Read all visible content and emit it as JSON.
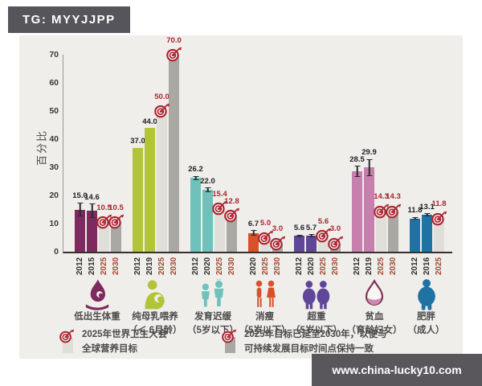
{
  "header": {
    "badge": "TG: MYYJJPP"
  },
  "watermark": {
    "text": "www.china-lucky10.com"
  },
  "colors": {
    "panel_bg": "#f0eeeb",
    "badge_bg": "#57555c",
    "bar_gray_2025": "#e0ded9",
    "bar_gray_2030": "#aaa8a3",
    "target_red": "#ab2430",
    "target_year_red": "#a34a33",
    "data_label": "#22211f"
  },
  "legend": [
    {
      "icon": "target-2025-legend-icon",
      "stub": "light",
      "lines": [
        "2025年世界卫生大会",
        "全球营养目标"
      ]
    },
    {
      "icon": "target-2030-legend-icon",
      "stub": "dark",
      "lines": [
        "2025年目标已延至2030年，以便与",
        "可持续发展目标时间点保持一致"
      ]
    }
  ],
  "chart_data": {
    "type": "bar",
    "title": "",
    "ylabel": "百分比",
    "ylim": [
      0,
      70
    ],
    "yticks": [
      0,
      10,
      20,
      30,
      40,
      50,
      60,
      70
    ],
    "grid": false,
    "note": "gray bars = 2025 WHA targets (light) and targets extended to 2030 (dark); whiskers = uncertainty intervals",
    "groups": [
      {
        "category": "低出生体重",
        "sublabel": "",
        "icon": "low-birth-weight-icon",
        "color": "#7e2a5f",
        "bars": [
          {
            "year": "2012",
            "value": 15.0,
            "label": "15.0",
            "kind": "data",
            "error": 2.5
          },
          {
            "year": "2015",
            "value": 14.6,
            "label": "14.6",
            "kind": "data",
            "error": 2.5
          },
          {
            "year": "2025",
            "value": 10.5,
            "label": "10.5",
            "kind": "target2025"
          },
          {
            "year": "2030",
            "value": 10.5,
            "label": "10.5",
            "kind": "target2030"
          }
        ]
      },
      {
        "category": "纯母乳喂养",
        "sublabel": "（＜ 6月龄）",
        "icon": "breastfeeding-icon",
        "color": "#b2c437",
        "bars": [
          {
            "year": "2012",
            "value": 37.0,
            "label": "37.0",
            "kind": "data"
          },
          {
            "year": "2019",
            "value": 44.0,
            "label": "44.0",
            "kind": "data"
          },
          {
            "year": "2025",
            "value": 50.0,
            "label": "50.0",
            "kind": "target2025"
          },
          {
            "year": "2030",
            "value": 70.0,
            "label": "70.0",
            "kind": "target2030"
          }
        ]
      },
      {
        "category": "发育迟缓",
        "sublabel": "（5岁以下）",
        "icon": "stunting-icon",
        "color": "#6fc2bb",
        "bars": [
          {
            "year": "2012",
            "value": 26.2,
            "label": "26.2",
            "kind": "data",
            "error": 0.8
          },
          {
            "year": "2020",
            "value": 22.0,
            "label": "22.0",
            "kind": "data",
            "error": 0.8
          },
          {
            "year": "2025",
            "value": 15.4,
            "label": "15.4",
            "kind": "target2025"
          },
          {
            "year": "2030",
            "value": 12.8,
            "label": "12.8",
            "kind": "target2030"
          }
        ]
      },
      {
        "category": "消瘦",
        "sublabel": "（5岁以下）",
        "icon": "wasting-icon",
        "color": "#d9512b",
        "bars": [
          {
            "year": "2020",
            "value": 6.7,
            "label": "6.7",
            "kind": "data",
            "error": 0.9
          },
          {
            "year": "2025",
            "value": 5.0,
            "label": "5.0",
            "kind": "target2025"
          },
          {
            "year": "2030",
            "value": 3.0,
            "label": "3.0",
            "kind": "target2030"
          }
        ]
      },
      {
        "category": "超重",
        "sublabel": "（5岁以下）",
        "icon": "overweight-icon",
        "color": "#5f4699",
        "bars": [
          {
            "year": "2012",
            "value": 5.6,
            "label": "5.6",
            "kind": "data",
            "error": 0.5
          },
          {
            "year": "2020",
            "value": 5.7,
            "label": "5.7",
            "kind": "data",
            "error": 0.5
          },
          {
            "year": "2025",
            "value": 5.6,
            "label": "5.6",
            "kind": "target2025"
          },
          {
            "year": "2030",
            "value": 3.0,
            "label": "3.0",
            "kind": "target2030"
          }
        ]
      },
      {
        "category": "贫血",
        "sublabel": "（育龄妇女）",
        "icon": "anemia-icon",
        "color": "#c77fae",
        "bars": [
          {
            "year": "2012",
            "value": 28.5,
            "label": "28.5",
            "kind": "data",
            "error": 2.0
          },
          {
            "year": "2019",
            "value": 29.9,
            "label": "29.9",
            "kind": "data",
            "error": 3.0
          },
          {
            "year": "2025",
            "value": 14.3,
            "label": "14.3",
            "kind": "target2025"
          },
          {
            "year": "2030",
            "value": 14.3,
            "label": "14.3",
            "kind": "target2030"
          }
        ]
      },
      {
        "category": "肥胖",
        "sublabel": "（成人）",
        "icon": "obesity-icon",
        "color": "#2072a3",
        "bars": [
          {
            "year": "2012",
            "value": 11.8,
            "label": "11.8",
            "kind": "data",
            "error": 0.5
          },
          {
            "year": "2016",
            "value": 13.1,
            "label": "13.1",
            "kind": "data",
            "error": 0.6
          },
          {
            "year": "2025",
            "value": 11.8,
            "label": "11.8",
            "kind": "target2025"
          }
        ]
      }
    ]
  }
}
